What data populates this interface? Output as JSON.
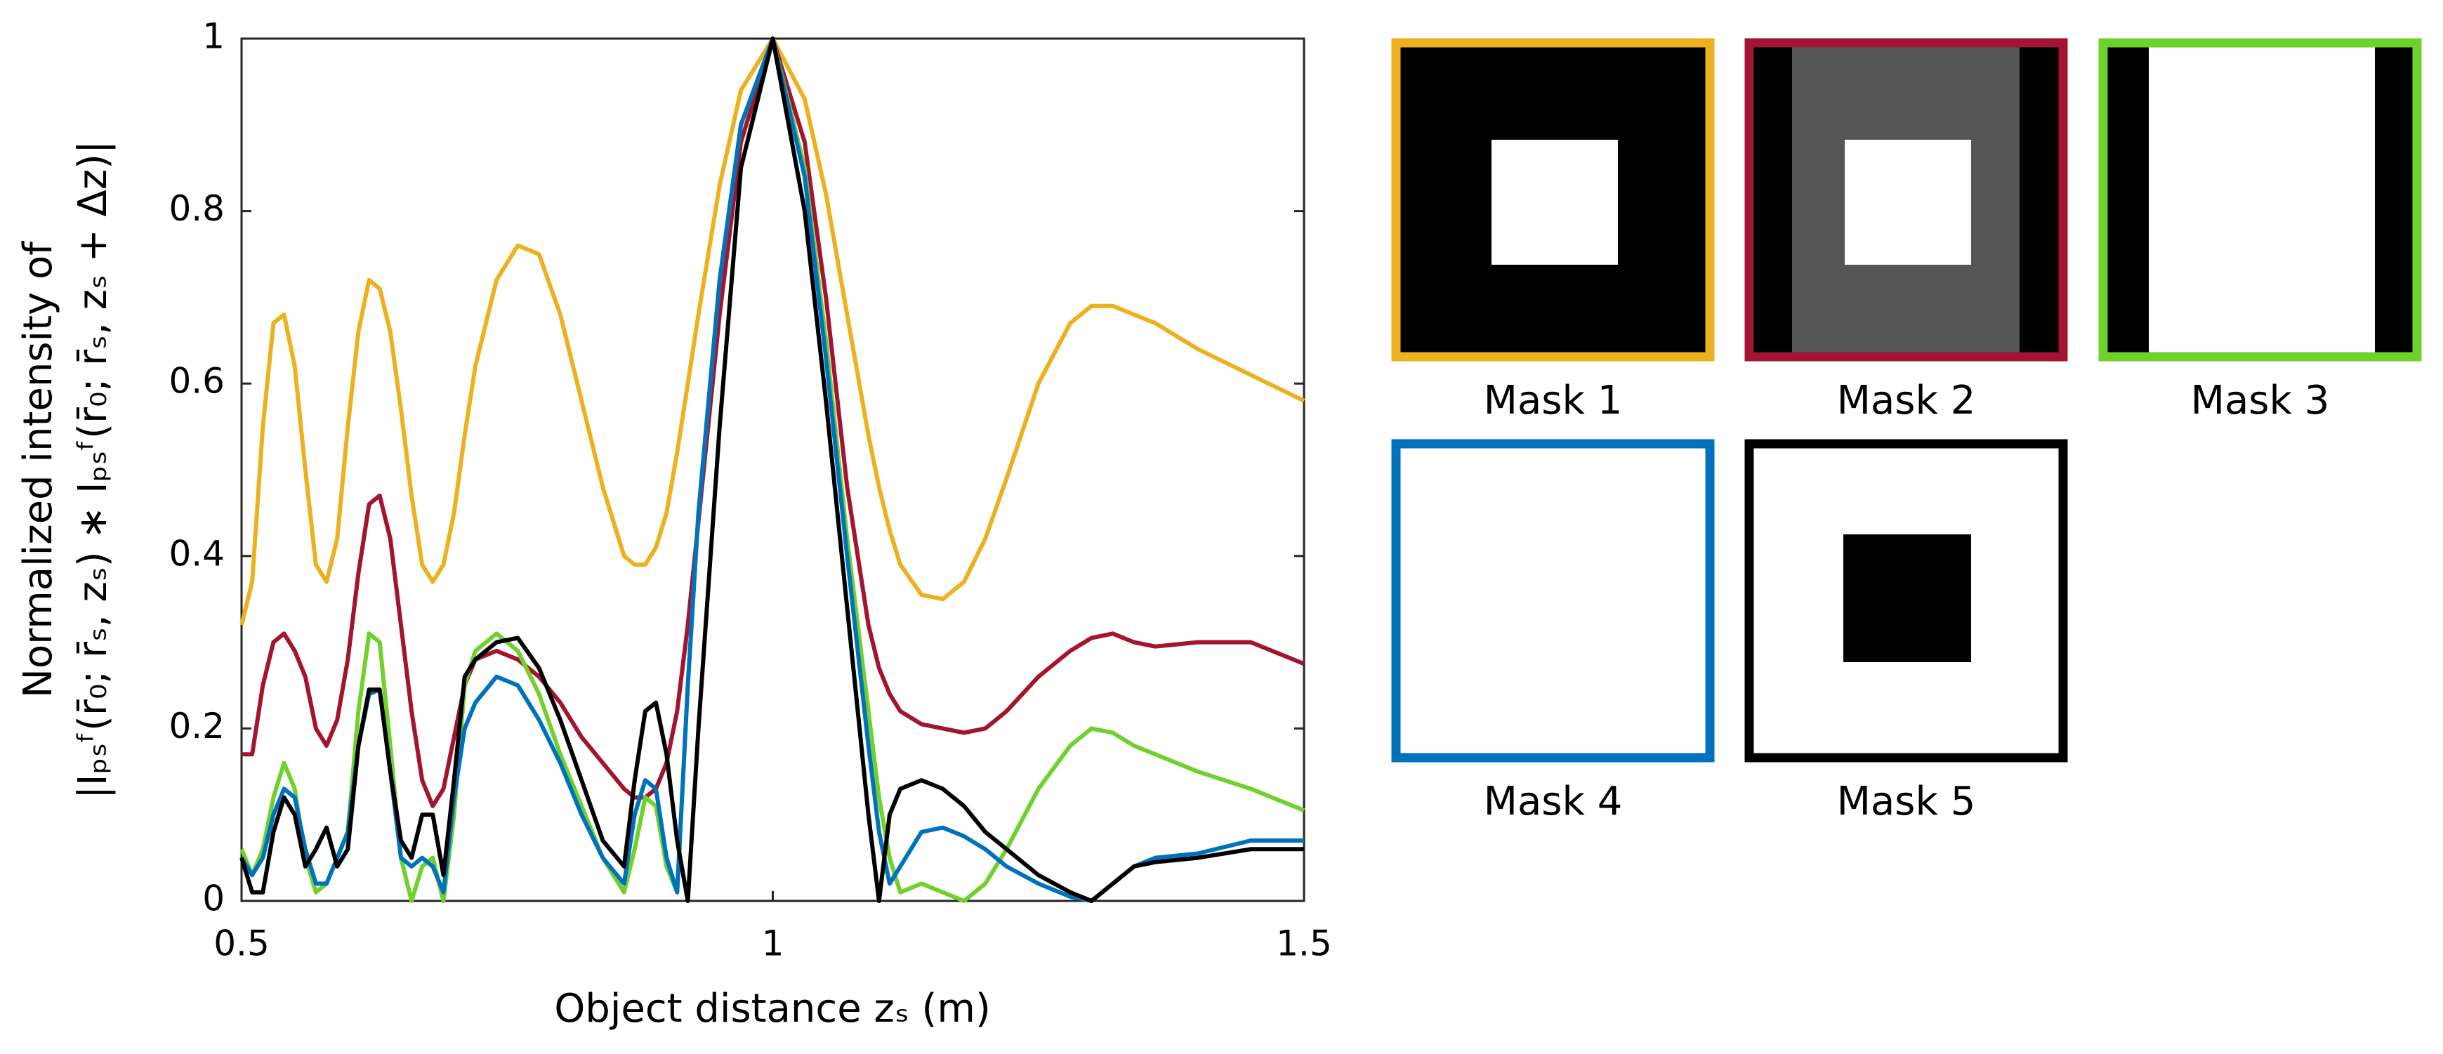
{
  "chart_data": {
    "type": "line",
    "ylabel": [
      "Normalized intensity of",
      "|Iₚₛᶠ(r̄₀; r̄ₛ, zₛ) ∗ Iₚₛᶠ(r̄₀; r̄ₛ, zₛ + Δz)|"
    ],
    "xlabel": "Object distance zₛ (m)",
    "xlim": [
      0.5,
      1.5
    ],
    "ylim": [
      0,
      1
    ],
    "xticks": [
      0.5,
      1,
      1.5
    ],
    "yticks": [
      0,
      0.2,
      0.4,
      0.6,
      0.8,
      1
    ],
    "x": [
      0.5,
      0.51,
      0.52,
      0.53,
      0.54,
      0.55,
      0.56,
      0.57,
      0.58,
      0.59,
      0.6,
      0.61,
      0.62,
      0.63,
      0.64,
      0.65,
      0.66,
      0.67,
      0.68,
      0.69,
      0.7,
      0.71,
      0.72,
      0.74,
      0.76,
      0.78,
      0.8,
      0.82,
      0.84,
      0.86,
      0.87,
      0.88,
      0.89,
      0.9,
      0.91,
      0.92,
      0.93,
      0.95,
      0.97,
      1,
      1.03,
      1.05,
      1.07,
      1.09,
      1.1,
      1.11,
      1.12,
      1.14,
      1.16,
      1.18,
      1.2,
      1.22,
      1.25,
      1.28,
      1.3,
      1.32,
      1.34,
      1.36,
      1.4,
      1.45,
      1.5
    ],
    "series": [
      {
        "name": "Mask 1",
        "color": "#edb120",
        "values": [
          0.32,
          0.37,
          0.55,
          0.67,
          0.68,
          0.62,
          0.5,
          0.39,
          0.37,
          0.42,
          0.55,
          0.66,
          0.72,
          0.71,
          0.66,
          0.57,
          0.47,
          0.39,
          0.37,
          0.39,
          0.45,
          0.54,
          0.62,
          0.72,
          0.76,
          0.75,
          0.68,
          0.58,
          0.48,
          0.4,
          0.39,
          0.39,
          0.41,
          0.45,
          0.52,
          0.6,
          0.68,
          0.83,
          0.94,
          1,
          0.93,
          0.82,
          0.68,
          0.54,
          0.48,
          0.43,
          0.39,
          0.355,
          0.35,
          0.37,
          0.42,
          0.49,
          0.6,
          0.67,
          0.69,
          0.69,
          0.68,
          0.67,
          0.64,
          0.61,
          0.58
        ]
      },
      {
        "name": "Mask 2",
        "color": "#a2142f",
        "values": [
          0.17,
          0.17,
          0.25,
          0.3,
          0.31,
          0.29,
          0.26,
          0.2,
          0.18,
          0.21,
          0.28,
          0.38,
          0.46,
          0.47,
          0.42,
          0.32,
          0.22,
          0.14,
          0.11,
          0.13,
          0.19,
          0.25,
          0.28,
          0.29,
          0.28,
          0.26,
          0.23,
          0.19,
          0.16,
          0.13,
          0.12,
          0.12,
          0.13,
          0.16,
          0.22,
          0.32,
          0.44,
          0.68,
          0.88,
          1,
          0.88,
          0.7,
          0.48,
          0.32,
          0.27,
          0.24,
          0.22,
          0.205,
          0.2,
          0.195,
          0.2,
          0.22,
          0.26,
          0.29,
          0.305,
          0.31,
          0.3,
          0.295,
          0.3,
          0.3,
          0.275
        ]
      },
      {
        "name": "Mask 3",
        "color": "#6fd12b",
        "values": [
          0.06,
          0.03,
          0.06,
          0.12,
          0.16,
          0.13,
          0.05,
          0.01,
          0.02,
          0.05,
          0.08,
          0.22,
          0.31,
          0.3,
          0.18,
          0.05,
          0,
          0.04,
          0.05,
          0,
          0.1,
          0.25,
          0.29,
          0.31,
          0.29,
          0.24,
          0.17,
          0.11,
          0.05,
          0.01,
          0.06,
          0.12,
          0.11,
          0.04,
          0.01,
          0.25,
          0.45,
          0.72,
          0.9,
          1,
          0.85,
          0.65,
          0.42,
          0.22,
          0.12,
          0.05,
          0.01,
          0.02,
          0.01,
          0,
          0.02,
          0.06,
          0.13,
          0.18,
          0.2,
          0.195,
          0.18,
          0.17,
          0.15,
          0.13,
          0.105
        ]
      },
      {
        "name": "Mask 4",
        "color": "#0072bd",
        "values": [
          0.05,
          0.03,
          0.05,
          0.1,
          0.13,
          0.12,
          0.06,
          0.02,
          0.02,
          0.05,
          0.08,
          0.18,
          0.24,
          0.245,
          0.15,
          0.05,
          0.04,
          0.05,
          0.04,
          0.01,
          0.12,
          0.2,
          0.23,
          0.26,
          0.25,
          0.21,
          0.16,
          0.1,
          0.05,
          0.02,
          0.1,
          0.14,
          0.13,
          0.05,
          0.01,
          0.25,
          0.45,
          0.72,
          0.9,
          1,
          0.84,
          0.63,
          0.4,
          0.18,
          0.08,
          0.02,
          0.04,
          0.08,
          0.085,
          0.075,
          0.06,
          0.04,
          0.02,
          0.005,
          0,
          0.02,
          0.04,
          0.05,
          0.055,
          0.07,
          0.07
        ]
      },
      {
        "name": "Mask 5",
        "color": "#000000",
        "values": [
          0.05,
          0.01,
          0.01,
          0.08,
          0.12,
          0.1,
          0.04,
          0.06,
          0.085,
          0.04,
          0.06,
          0.18,
          0.245,
          0.245,
          0.15,
          0.07,
          0.05,
          0.1,
          0.1,
          0.03,
          0.14,
          0.26,
          0.28,
          0.3,
          0.305,
          0.27,
          0.21,
          0.14,
          0.07,
          0.04,
          0.14,
          0.22,
          0.23,
          0.17,
          0.07,
          0,
          0.2,
          0.55,
          0.85,
          1,
          0.8,
          0.58,
          0.34,
          0.1,
          0,
          0.1,
          0.13,
          0.14,
          0.13,
          0.11,
          0.08,
          0.06,
          0.03,
          0.01,
          0,
          0.02,
          0.04,
          0.045,
          0.05,
          0.06,
          0.06
        ]
      }
    ]
  }
}
